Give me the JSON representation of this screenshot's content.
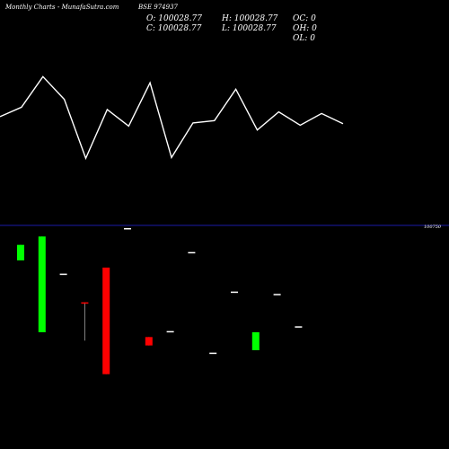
{
  "header": {
    "chart_type": "Monthly Charts",
    "site": "- MunafaSutra.com",
    "symbol": "BSE 974937"
  },
  "ohlc_panel": {
    "open": "O: 100028.77",
    "close": "C: 100028.77",
    "high": "H: 100028.77",
    "low": "L: 100028.77",
    "oc": "OC: 0",
    "oh": "OH: 0",
    "ol": "OL: 0"
  },
  "price_level_label": "100750",
  "colors": {
    "background": "#000000",
    "line": "#ffffff",
    "up": "#00ff00",
    "down": "#ff0000",
    "neutral": "#ffffff",
    "level_line": "#1a1aa8"
  },
  "chart_data": {
    "type": "candlestick-with-line",
    "level": 100750,
    "line_series": {
      "values": [
        0.43,
        0.55,
        0.94,
        0.65,
        -0.1,
        0.52,
        0.31,
        0.86,
        -0.09,
        0.35,
        0.38,
        0.78,
        0.26,
        0.49,
        0.32,
        0.47,
        0.34
      ]
    },
    "candles": [
      {
        "open": 100550,
        "close": 100680,
        "high": 100680,
        "low": 100550,
        "color": "up"
      },
      {
        "open": 99950,
        "close": 100750,
        "high": 100750,
        "low": 99950,
        "color": "up"
      },
      {
        "open": 100440,
        "close": 100440,
        "high": 100440,
        "low": 100440,
        "color": "neutral"
      },
      {
        "open": 100200,
        "close": 100190,
        "high": 100200,
        "low": 99880,
        "color": "down"
      },
      {
        "open": 100490,
        "close": 99600,
        "high": 100490,
        "low": 99600,
        "color": "down"
      },
      {
        "open": 100820,
        "close": 100820,
        "high": 100820,
        "low": 100820,
        "color": "neutral"
      },
      {
        "open": 99910,
        "close": 99840,
        "high": 99910,
        "low": 99840,
        "color": "down"
      },
      {
        "open": 99960,
        "close": 99960,
        "high": 99960,
        "low": 99960,
        "color": "neutral"
      },
      {
        "open": 100620,
        "close": 100620,
        "high": 100620,
        "low": 100620,
        "color": "neutral"
      },
      {
        "open": 99780,
        "close": 99780,
        "high": 99780,
        "low": 99780,
        "color": "neutral"
      },
      {
        "open": 100290,
        "close": 100290,
        "high": 100290,
        "low": 100290,
        "color": "neutral"
      },
      {
        "open": 99800,
        "close": 99950,
        "high": 99950,
        "low": 99800,
        "color": "up"
      },
      {
        "open": 100270,
        "close": 100270,
        "high": 100270,
        "low": 100270,
        "color": "neutral"
      },
      {
        "open": 100000,
        "close": 100000,
        "high": 100000,
        "low": 100000,
        "color": "neutral"
      }
    ]
  }
}
